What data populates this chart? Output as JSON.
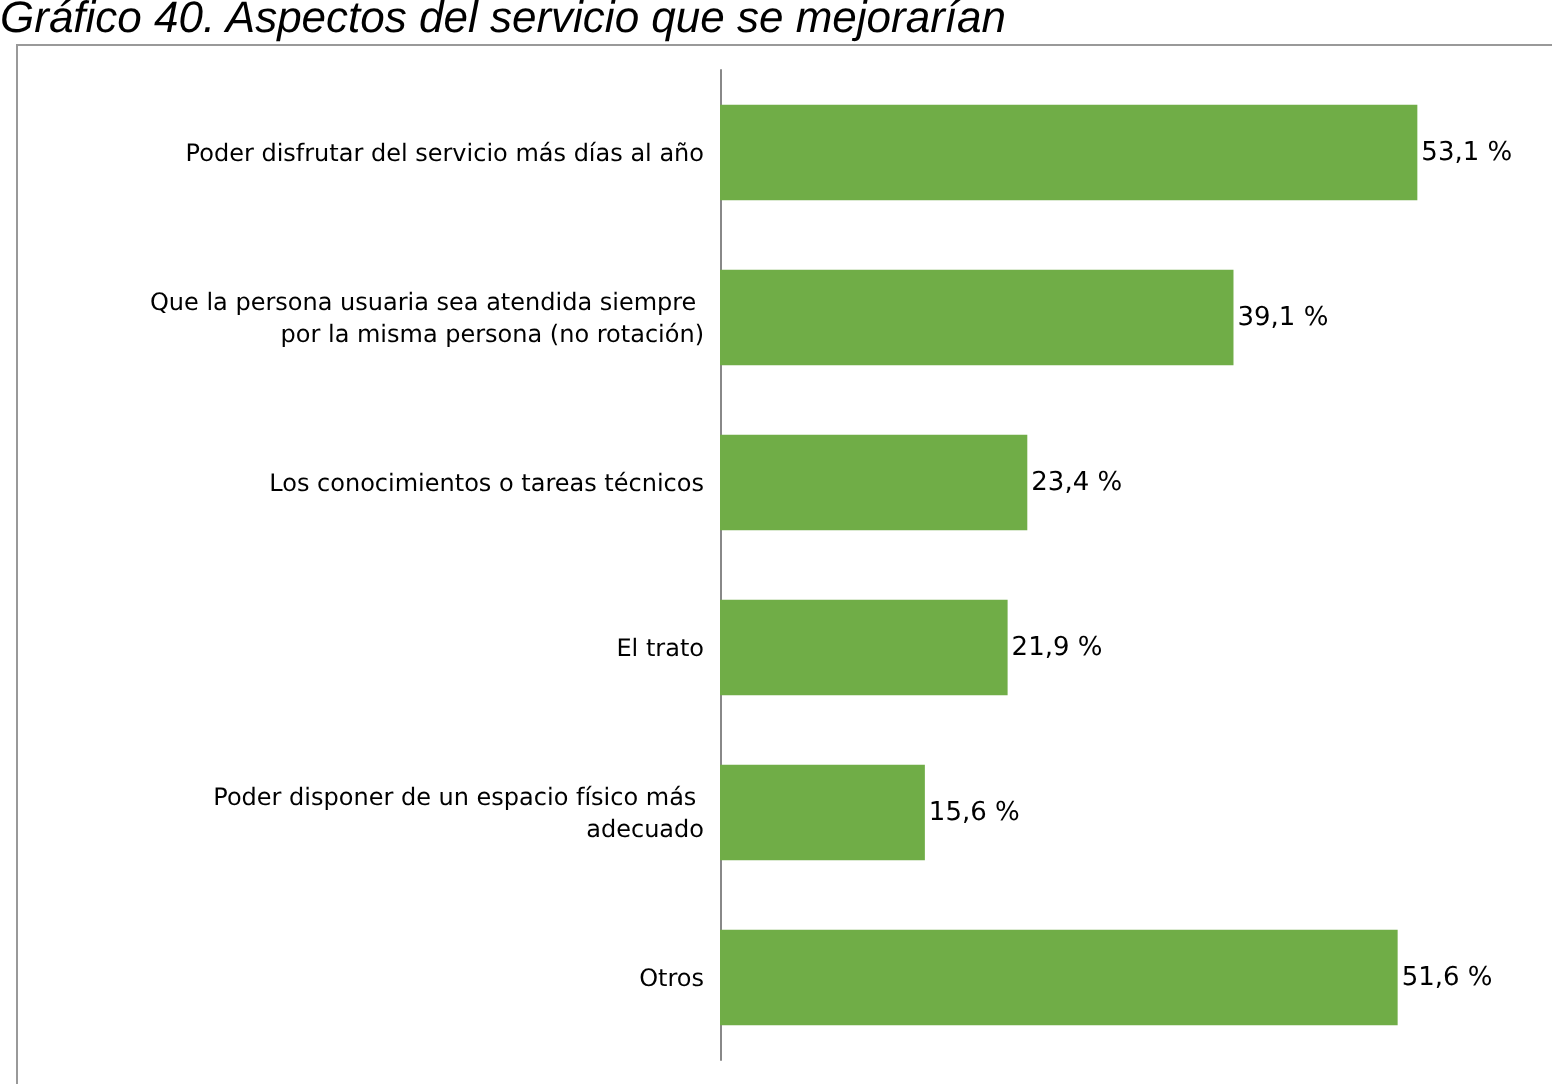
{
  "chart_data": {
    "type": "bar",
    "orientation": "horizontal",
    "title": "Gráfico 40. Aspectos del servicio que se mejorarían",
    "categories": [
      "Poder disfrutar del servicio más días al año",
      "Que la persona usuaria sea atendida siempre por la misma persona (no rotación)",
      "Los conocimientos o tareas técnicos",
      "El trato",
      "Poder disponer de un espacio físico más adecuado",
      "Otros"
    ],
    "values": [
      53.1,
      39.1,
      23.4,
      21.9,
      15.6,
      51.6
    ],
    "value_labels": [
      "53,1 %",
      "39,1 %",
      "23,4 %",
      "21,9 %",
      "15,6 %",
      "51,6 %"
    ],
    "color": "#70ad47"
  }
}
